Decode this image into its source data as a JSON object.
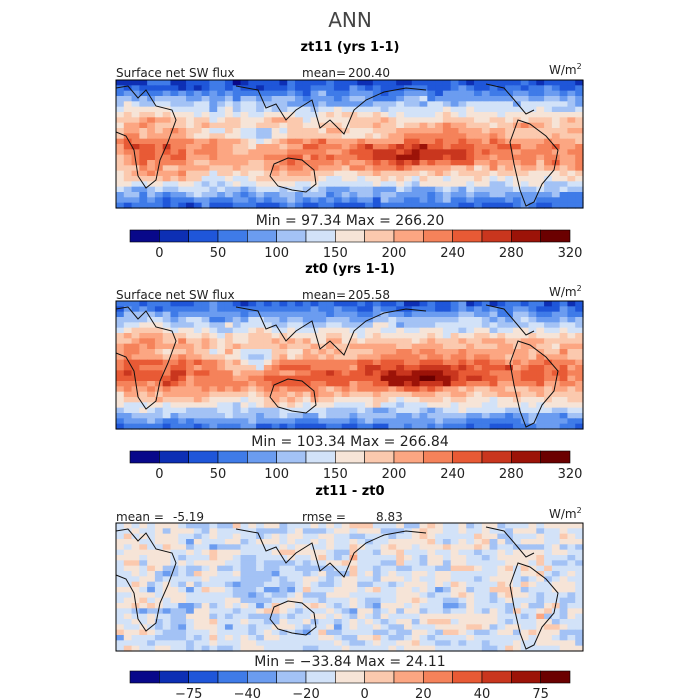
{
  "figure": {
    "title": "ANN"
  },
  "chart_data": [
    {
      "type": "heatmap",
      "title": "zt11 (yrs 1-1)",
      "left_label": "Surface net SW flux",
      "mean_label": "mean=",
      "mean_value": "200.40",
      "units": "W/m",
      "units_exp": "2",
      "min_label": "Min =",
      "min_value": "97.34",
      "max_label": "Max =",
      "max_value": "266.20",
      "colorbar": {
        "colors": [
          "#08088a",
          "#0d2fb4",
          "#1f56d9",
          "#3f7be8",
          "#6b9cf0",
          "#a3c2f5",
          "#d2e2f8",
          "#f6e4d7",
          "#fbc9ae",
          "#fca682",
          "#f5825a",
          "#e85a35",
          "#c9361e",
          "#9c1308",
          "#6b0000"
        ],
        "tick_labels": [
          "0",
          "50",
          "100",
          "150",
          "200",
          "240",
          "280",
          "320"
        ]
      }
    },
    {
      "type": "heatmap",
      "title": "zt0 (yrs 1-1)",
      "left_label": "Surface net SW flux",
      "mean_label": "mean=",
      "mean_value": "205.58",
      "units": "W/m",
      "units_exp": "2",
      "min_label": "Min =",
      "min_value": "103.34",
      "max_label": "Max =",
      "max_value": "266.84",
      "colorbar": {
        "colors": [
          "#08088a",
          "#0d2fb4",
          "#1f56d9",
          "#3f7be8",
          "#6b9cf0",
          "#a3c2f5",
          "#d2e2f8",
          "#f6e4d7",
          "#fbc9ae",
          "#fca682",
          "#f5825a",
          "#e85a35",
          "#c9361e",
          "#9c1308",
          "#6b0000"
        ],
        "tick_labels": [
          "0",
          "50",
          "100",
          "150",
          "200",
          "240",
          "280",
          "320"
        ]
      }
    },
    {
      "type": "heatmap",
      "title": "zt11 - zt0",
      "left_label": "mean =",
      "mean_value": "-5.19",
      "rmse_label": "rmse =",
      "rmse_value": "8.83",
      "units": "W/m",
      "units_exp": "2",
      "min_label": "Min =",
      "min_value": "−33.84",
      "max_label": "Max =",
      "max_value": "24.11",
      "colorbar": {
        "colors": [
          "#08088a",
          "#0d2fb4",
          "#1f56d9",
          "#3f7be8",
          "#6b9cf0",
          "#a3c2f5",
          "#d2e2f8",
          "#f6e4d7",
          "#fbc9ae",
          "#fca682",
          "#f5825a",
          "#e85a35",
          "#c9361e",
          "#9c1308",
          "#6b0000"
        ],
        "tick_labels": [
          "−75",
          "−40",
          "−20",
          "0",
          "20",
          "40",
          "75"
        ]
      }
    }
  ]
}
